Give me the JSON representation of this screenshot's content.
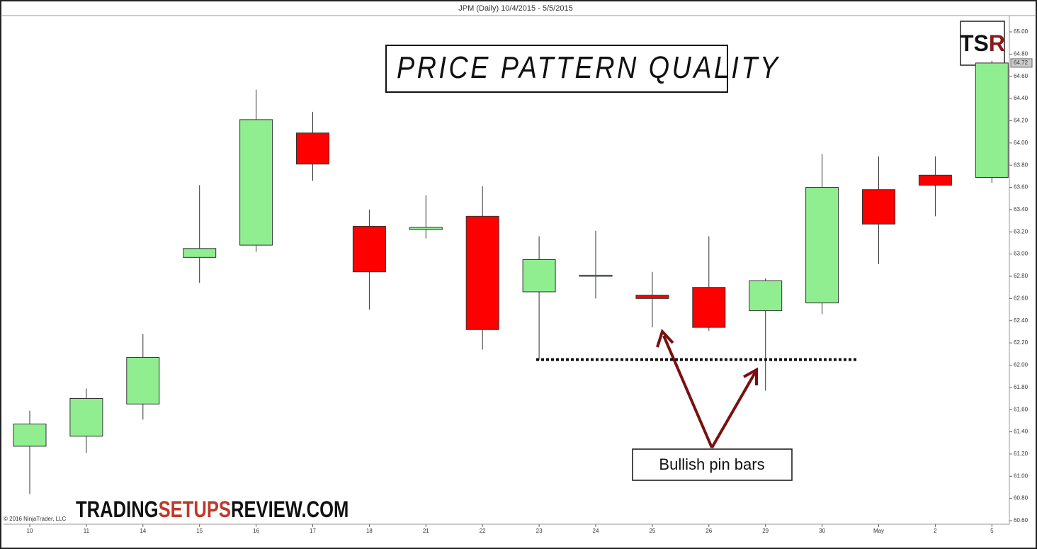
{
  "chart_data": {
    "type": "candlestick",
    "header": "JPM (Daily)  10/4/2015 - 5/5/2015",
    "title": "PRICE PATTERN QUALITY",
    "logo": [
      "TS",
      "R"
    ],
    "annotation": "Bullish pin bars",
    "watermark": [
      "TRADING",
      "SETUPS",
      "REVIEW.COM"
    ],
    "copyright": "© 2016 NinjaTrader, LLC",
    "categories": [
      "10",
      "11",
      "14",
      "15",
      "16",
      "17",
      "18",
      "21",
      "22",
      "23",
      "24",
      "25",
      "26",
      "29",
      "30",
      "May",
      "2",
      "5"
    ],
    "open": [
      61.27,
      61.36,
      61.65,
      62.97,
      63.08,
      64.09,
      63.25,
      63.22,
      63.34,
      62.66,
      62.8,
      62.63,
      62.7,
      62.49,
      62.56,
      63.58,
      63.71,
      63.69
    ],
    "high": [
      61.59,
      61.79,
      62.28,
      63.62,
      64.48,
      64.28,
      63.4,
      63.53,
      63.61,
      63.16,
      63.21,
      62.84,
      63.16,
      62.78,
      63.9,
      63.88,
      63.88,
      64.74
    ],
    "low": [
      60.84,
      61.21,
      61.51,
      62.74,
      63.02,
      63.66,
      62.5,
      63.14,
      62.14,
      62.05,
      62.6,
      62.34,
      62.31,
      61.77,
      62.46,
      62.91,
      63.34,
      63.64
    ],
    "close": [
      61.47,
      61.7,
      62.07,
      63.05,
      64.21,
      63.81,
      62.84,
      63.24,
      62.32,
      62.95,
      62.81,
      62.6,
      62.34,
      62.76,
      63.6,
      63.27,
      63.62,
      64.72
    ],
    "up_color": "#90ee90",
    "down_color": "#ff0000",
    "support_level": 62.05,
    "last_price": 64.72,
    "ylim": [
      60.6,
      65.0
    ],
    "yticks": [
      {
        "value": 65.0,
        "label": "65.00"
      },
      {
        "value": 64.8,
        "label": "64.80"
      },
      {
        "value": 64.6,
        "label": "64.60"
      },
      {
        "value": 64.4,
        "label": "64.40"
      },
      {
        "value": 64.2,
        "label": "64.20"
      },
      {
        "value": 64.0,
        "label": "64.00"
      },
      {
        "value": 63.8,
        "label": "63.80"
      },
      {
        "value": 63.6,
        "label": "63.60"
      },
      {
        "value": 63.4,
        "label": "63.40"
      },
      {
        "value": 63.2,
        "label": "63.20"
      },
      {
        "value": 63.0,
        "label": "63.00"
      },
      {
        "value": 62.8,
        "label": "62.80"
      },
      {
        "value": 62.6,
        "label": "62.60"
      },
      {
        "value": 62.4,
        "label": "62.40"
      },
      {
        "value": 62.2,
        "label": "62.20"
      },
      {
        "value": 62.0,
        "label": "62.00"
      },
      {
        "value": 61.8,
        "label": "61.80"
      },
      {
        "value": 61.6,
        "label": "61.60"
      },
      {
        "value": 61.4,
        "label": "61.40"
      },
      {
        "value": 61.2,
        "label": "61.20"
      },
      {
        "value": 61.0,
        "label": "61.00"
      },
      {
        "value": 60.8,
        "label": "60.80"
      },
      {
        "value": 60.6,
        "label": "60.60"
      }
    ]
  }
}
